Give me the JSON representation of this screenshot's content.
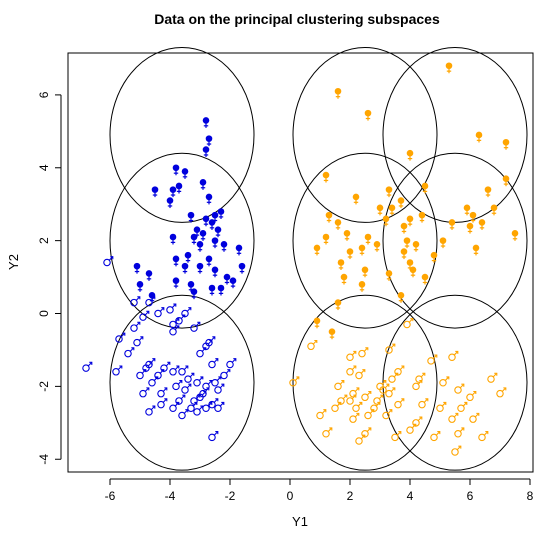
{
  "chart_data": {
    "type": "scatter",
    "title": "Data on the principal clustering subspaces",
    "xlabel": "Y1",
    "ylabel": "Y2",
    "xlim": [
      -7.4,
      8.1
    ],
    "ylim": [
      -4.35,
      7.15
    ],
    "xticks": [
      -6,
      -4,
      -2,
      0,
      2,
      4,
      6,
      8
    ],
    "yticks": [
      -4,
      -2,
      0,
      2,
      4,
      6
    ],
    "grid": false,
    "colors": {
      "blue": "#0000dd",
      "orange": "#ffa500",
      "circle": "#000000"
    },
    "marker_symbols": {
      "filled": "female-symbol-filled",
      "open": "male-symbol-open"
    },
    "circles": [
      {
        "cx": -3.6,
        "cy": 4.9,
        "r": 2.4
      },
      {
        "cx": -3.6,
        "cy": 2.0,
        "r": 2.4
      },
      {
        "cx": -3.6,
        "cy": -1.9,
        "r": 2.4
      },
      {
        "cx": 2.5,
        "cy": 4.9,
        "r": 2.4
      },
      {
        "cx": 5.5,
        "cy": 4.9,
        "r": 2.4
      },
      {
        "cx": 2.5,
        "cy": 2.0,
        "r": 2.4
      },
      {
        "cx": 5.5,
        "cy": 2.0,
        "r": 2.4
      },
      {
        "cx": 2.5,
        "cy": -1.9,
        "r": 2.4
      },
      {
        "cx": 5.5,
        "cy": -1.9,
        "r": 2.4
      }
    ],
    "series": [
      {
        "color": "blue",
        "marker": "filled",
        "points": [
          [
            -2.8,
            5.3
          ],
          [
            -2.7,
            4.8
          ],
          [
            -2.8,
            4.5
          ],
          [
            -3.8,
            4.0
          ],
          [
            -3.5,
            3.9
          ],
          [
            -2.9,
            3.6
          ],
          [
            -3.7,
            3.5
          ],
          [
            -3.9,
            3.4
          ],
          [
            -4.5,
            3.4
          ],
          [
            -2.7,
            3.2
          ],
          [
            -4.0,
            3.1
          ],
          [
            -2.3,
            2.8
          ],
          [
            -2.5,
            2.7
          ],
          [
            -3.3,
            2.7
          ],
          [
            -2.8,
            2.6
          ],
          [
            -2.6,
            2.5
          ],
          [
            -3.1,
            2.3
          ],
          [
            -2.4,
            2.3
          ],
          [
            -2.9,
            2.2
          ],
          [
            -3.2,
            2.1
          ],
          [
            -3.9,
            2.1
          ],
          [
            -2.5,
            2.0
          ],
          [
            -3.0,
            1.9
          ],
          [
            -2.2,
            1.9
          ],
          [
            -1.7,
            1.8
          ],
          [
            -3.4,
            1.6
          ],
          [
            -2.7,
            1.5
          ],
          [
            -3.0,
            1.3
          ],
          [
            -2.5,
            1.2
          ],
          [
            -3.8,
            1.5
          ],
          [
            -3.5,
            1.3
          ],
          [
            -2.1,
            1.0
          ],
          [
            -2.6,
            0.7
          ],
          [
            -1.9,
            0.9
          ],
          [
            -1.6,
            1.3
          ],
          [
            -5.1,
            1.3
          ],
          [
            -4.7,
            1.1
          ],
          [
            -3.3,
            0.8
          ],
          [
            -2.3,
            0.7
          ],
          [
            -5.0,
            0.8
          ],
          [
            -3.8,
            0.9
          ],
          [
            -4.6,
            0.5
          ],
          [
            -3.2,
            0.6
          ]
        ]
      },
      {
        "color": "blue",
        "marker": "open",
        "points": [
          [
            -6.1,
            1.4
          ],
          [
            -4.7,
            0.3
          ],
          [
            -4.4,
            0.0
          ],
          [
            -5.2,
            0.3
          ],
          [
            -4.9,
            -0.1
          ],
          [
            -3.7,
            -0.2
          ],
          [
            -4.0,
            0.1
          ],
          [
            -3.5,
            0.0
          ],
          [
            -5.2,
            -0.4
          ],
          [
            -3.9,
            -0.5
          ],
          [
            -3.2,
            -0.4
          ],
          [
            -3.9,
            -0.3
          ],
          [
            -5.7,
            -0.7
          ],
          [
            -5.1,
            -0.8
          ],
          [
            -2.7,
            -0.8
          ],
          [
            -2.8,
            -0.9
          ],
          [
            -5.4,
            -1.1
          ],
          [
            -4.7,
            -1.4
          ],
          [
            -3.0,
            -1.1
          ],
          [
            -2.6,
            -1.4
          ],
          [
            -2.0,
            -1.4
          ],
          [
            -2.2,
            -1.7
          ],
          [
            -3.6,
            -1.6
          ],
          [
            -4.2,
            -1.5
          ],
          [
            -4.4,
            -1.7
          ],
          [
            -4.8,
            -1.5
          ],
          [
            -3.9,
            -1.6
          ],
          [
            -3.4,
            -1.8
          ],
          [
            -3.1,
            -1.9
          ],
          [
            -2.8,
            -2.0
          ],
          [
            -2.5,
            -1.9
          ],
          [
            -5.0,
            -1.7
          ],
          [
            -4.6,
            -1.9
          ],
          [
            -3.8,
            -2.0
          ],
          [
            -3.5,
            -2.1
          ],
          [
            -2.9,
            -2.2
          ],
          [
            -2.4,
            -2.1
          ],
          [
            -4.3,
            -2.2
          ],
          [
            -3.2,
            -2.4
          ],
          [
            -3.7,
            -2.4
          ],
          [
            -3.3,
            -2.6
          ],
          [
            -2.8,
            -2.6
          ],
          [
            -3.6,
            -2.8
          ],
          [
            -3.9,
            -2.6
          ],
          [
            -2.6,
            -2.5
          ],
          [
            -3.1,
            -2.7
          ],
          [
            -4.7,
            -2.7
          ],
          [
            -4.3,
            -2.5
          ],
          [
            -3.0,
            -2.3
          ],
          [
            -2.6,
            -3.4
          ],
          [
            -6.8,
            -1.5
          ],
          [
            -5.8,
            -1.6
          ],
          [
            -4.9,
            -2.2
          ],
          [
            -2.4,
            -2.6
          ]
        ]
      },
      {
        "color": "orange",
        "marker": "filled",
        "points": [
          [
            5.3,
            6.8
          ],
          [
            1.6,
            6.1
          ],
          [
            2.6,
            5.5
          ],
          [
            4.0,
            4.4
          ],
          [
            6.3,
            4.9
          ],
          [
            7.2,
            4.7
          ],
          [
            1.2,
            3.8
          ],
          [
            4.5,
            3.5
          ],
          [
            3.3,
            3.4
          ],
          [
            6.6,
            3.4
          ],
          [
            7.2,
            3.7
          ],
          [
            2.2,
            3.2
          ],
          [
            3.7,
            3.1
          ],
          [
            3.4,
            2.9
          ],
          [
            3.0,
            2.9
          ],
          [
            6.8,
            2.9
          ],
          [
            5.9,
            2.9
          ],
          [
            1.3,
            2.7
          ],
          [
            4.4,
            2.7
          ],
          [
            4.0,
            2.6
          ],
          [
            3.8,
            2.4
          ],
          [
            6.0,
            2.4
          ],
          [
            6.4,
            2.5
          ],
          [
            6.1,
            2.7
          ],
          [
            3.2,
            2.6
          ],
          [
            1.6,
            2.5
          ],
          [
            5.4,
            2.5
          ],
          [
            1.9,
            2.2
          ],
          [
            2.6,
            2.1
          ],
          [
            3.9,
            2.0
          ],
          [
            7.5,
            2.2
          ],
          [
            1.2,
            2.1
          ],
          [
            2.4,
            1.8
          ],
          [
            2.9,
            1.9
          ],
          [
            4.2,
            1.9
          ],
          [
            5.1,
            2.0
          ],
          [
            6.2,
            1.8
          ],
          [
            0.9,
            1.8
          ],
          [
            2.0,
            1.7
          ],
          [
            3.8,
            1.7
          ],
          [
            4.8,
            1.6
          ],
          [
            1.7,
            1.4
          ],
          [
            2.5,
            1.2
          ],
          [
            4.1,
            1.2
          ],
          [
            1.8,
            1.0
          ],
          [
            3.3,
            1.1
          ],
          [
            4.5,
            1.0
          ],
          [
            2.4,
            0.8
          ],
          [
            3.7,
            0.5
          ],
          [
            1.6,
            0.3
          ],
          [
            0.9,
            -0.2
          ],
          [
            1.4,
            -0.5
          ],
          [
            4.0,
            1.4
          ]
        ]
      },
      {
        "color": "orange",
        "marker": "open",
        "points": [
          [
            3.9,
            -0.3
          ],
          [
            0.7,
            -0.9
          ],
          [
            2.0,
            -1.2
          ],
          [
            2.4,
            -1.1
          ],
          [
            3.3,
            -1.0
          ],
          [
            4.7,
            -1.3
          ],
          [
            5.4,
            -1.2
          ],
          [
            2.0,
            -1.6
          ],
          [
            2.3,
            -1.7
          ],
          [
            3.6,
            -1.6
          ],
          [
            3.4,
            -1.8
          ],
          [
            4.2,
            -2.0
          ],
          [
            6.7,
            -1.8
          ],
          [
            7.0,
            -2.2
          ],
          [
            0.1,
            -1.9
          ],
          [
            1.6,
            -2.0
          ],
          [
            3.0,
            -2.0
          ],
          [
            3.3,
            -2.2
          ],
          [
            5.1,
            -1.9
          ],
          [
            5.6,
            -2.1
          ],
          [
            1.7,
            -2.4
          ],
          [
            2.0,
            -2.4
          ],
          [
            2.5,
            -2.3
          ],
          [
            2.9,
            -2.4
          ],
          [
            3.6,
            -2.5
          ],
          [
            4.4,
            -2.5
          ],
          [
            6.0,
            -2.3
          ],
          [
            1.5,
            -2.6
          ],
          [
            2.2,
            -2.6
          ],
          [
            2.8,
            -2.6
          ],
          [
            5.0,
            -2.6
          ],
          [
            5.7,
            -2.6
          ],
          [
            1.0,
            -2.8
          ],
          [
            2.1,
            -2.9
          ],
          [
            2.6,
            -2.8
          ],
          [
            3.2,
            -2.8
          ],
          [
            4.2,
            -3.0
          ],
          [
            5.4,
            -2.9
          ],
          [
            6.1,
            -2.9
          ],
          [
            1.2,
            -3.3
          ],
          [
            2.5,
            -3.3
          ],
          [
            4.0,
            -3.2
          ],
          [
            5.6,
            -3.3
          ],
          [
            2.3,
            -3.5
          ],
          [
            3.5,
            -3.4
          ],
          [
            4.8,
            -3.4
          ],
          [
            5.5,
            -3.8
          ],
          [
            6.4,
            -3.4
          ],
          [
            3.1,
            -2.1
          ],
          [
            4.3,
            -1.8
          ],
          [
            2.1,
            -2.2
          ]
        ]
      }
    ]
  }
}
